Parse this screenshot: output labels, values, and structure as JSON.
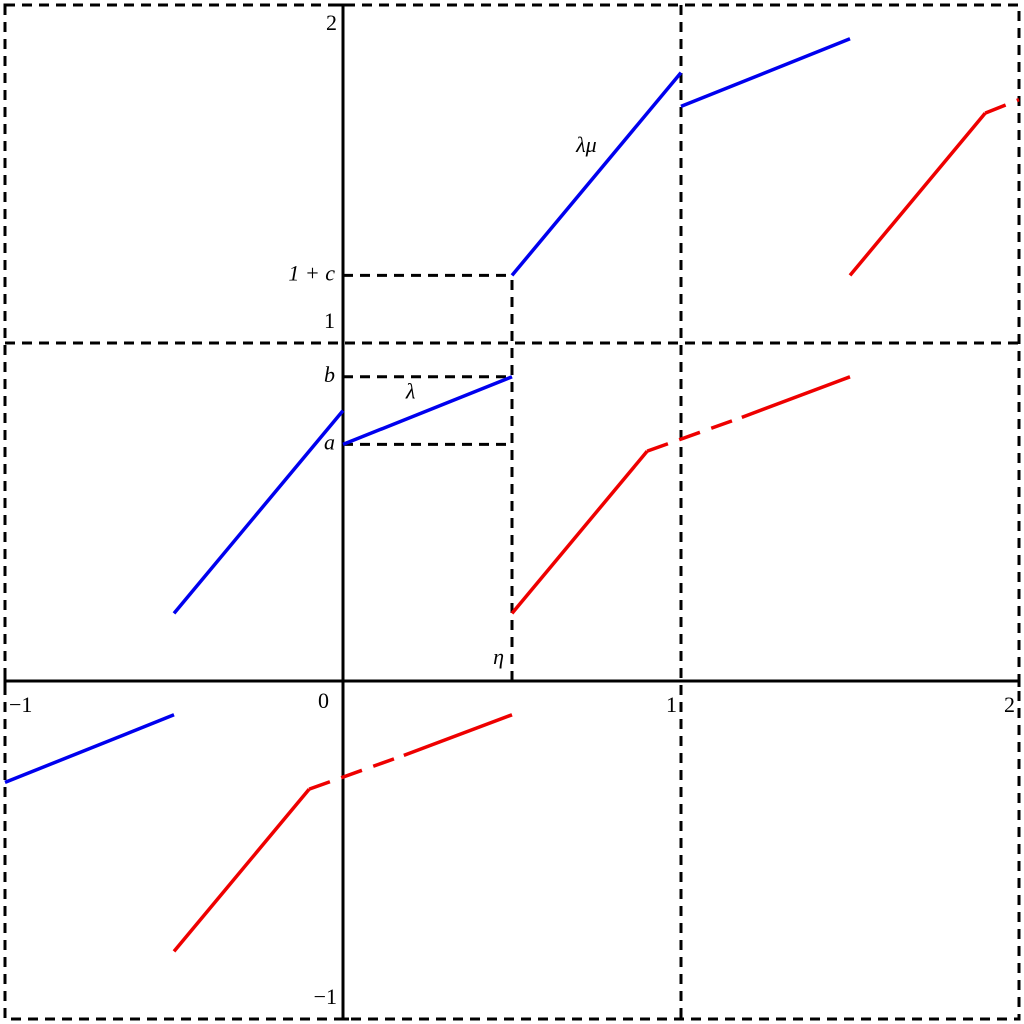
{
  "chart_data": {
    "type": "line",
    "xlim": [
      -1,
      2
    ],
    "ylim": [
      -1,
      2
    ],
    "xticks": [
      {
        "value": -1,
        "label": "−1"
      },
      0,
      {
        "value": 0.5,
        "label": "η"
      },
      1,
      2
    ],
    "yticks": [
      {
        "value": -1,
        "label": "−1"
      },
      {
        "value": 0.7,
        "label": "a"
      },
      {
        "value": 0.9,
        "label": "b"
      },
      1,
      {
        "value": 1.2,
        "label": "1 + c"
      },
      2
    ],
    "series": [
      {
        "color": "#0000ee",
        "dashed": false,
        "x": [
          -1,
          -0.5,
          -0.5,
          -0.5,
          0,
          0,
          0,
          0.5,
          0.5,
          0.5,
          1,
          1,
          1,
          1.5
        ],
        "values": [
          -0.3,
          -0.1,
          null,
          0.2,
          0.8,
          null,
          0.7,
          0.9,
          null,
          1.2,
          1.8,
          null,
          1.7,
          1.9
        ]
      },
      {
        "color": "#ee0000",
        "dashed": false,
        "x": [
          -0.5,
          -0.1,
          -0.1,
          0.18,
          0.5,
          0.5,
          0.5,
          0.9,
          0.9,
          1.18,
          1.5,
          1.5,
          1.5,
          1.9
        ],
        "values": [
          -0.8,
          -0.32,
          null,
          -0.22,
          -0.1,
          null,
          0.2,
          0.68,
          null,
          0.78,
          0.9,
          null,
          1.2,
          1.68
        ]
      },
      {
        "color": "#ee0000",
        "dashed": true,
        "x": [
          -0.1,
          0.18,
          0.18,
          0.9,
          1.18,
          1.18,
          1.9,
          2
        ],
        "values": [
          -0.32,
          -0.22,
          null,
          0.68,
          0.78,
          null,
          1.68,
          1.72
        ]
      }
    ],
    "annotations": [
      {
        "text": "λ",
        "x": 0.2,
        "y": 0.85
      },
      {
        "text": "λμ",
        "x": 0.72,
        "y": 1.58
      }
    ]
  }
}
